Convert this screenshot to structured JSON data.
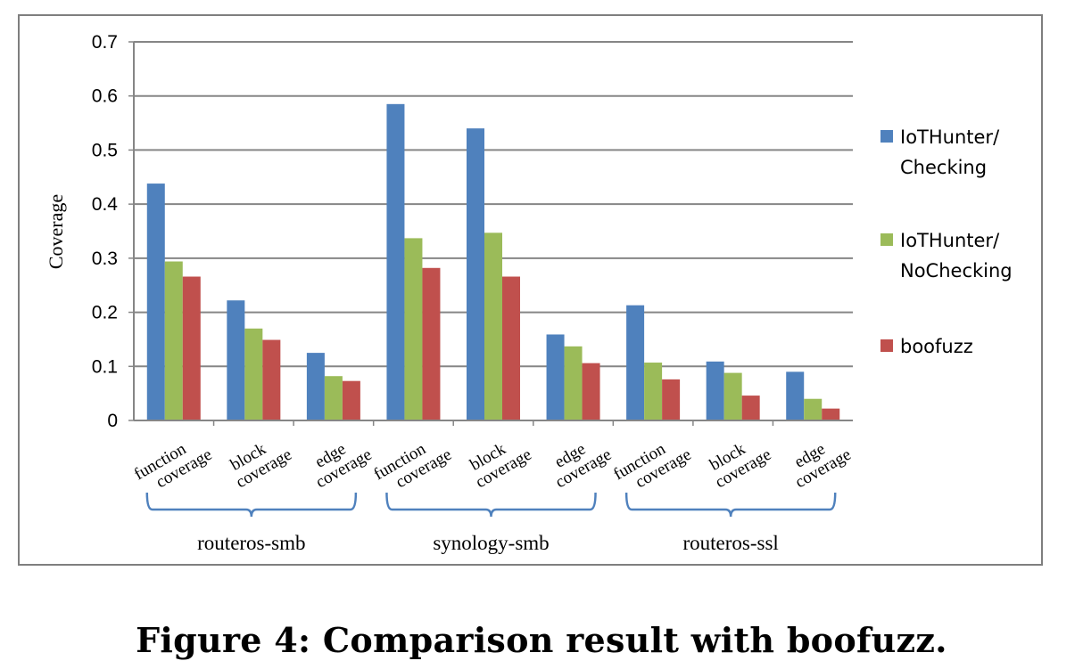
{
  "chart_data": {
    "type": "bar",
    "title": "",
    "ylabel": "Coverage",
    "xlabel": "",
    "ylim": [
      0,
      0.7
    ],
    "yticks": [
      "0",
      "0.1",
      "0.2",
      "0.3",
      "0.4",
      "0.5",
      "0.6",
      "0.7"
    ],
    "grid": true,
    "legend_position": "right",
    "categories": [
      [
        "function",
        "coverage"
      ],
      [
        "block",
        "coverage"
      ],
      [
        "edge",
        "coverage"
      ],
      [
        "function",
        "coverage"
      ],
      [
        "block",
        "coverage"
      ],
      [
        "edge",
        "coverage"
      ],
      [
        "function",
        "coverage"
      ],
      [
        "block",
        "coverage"
      ],
      [
        "edge",
        "coverage"
      ]
    ],
    "groups": [
      "routeros-smb",
      "synology-smb",
      "routeros-ssl"
    ],
    "series": [
      {
        "name": [
          "IoTHunter/",
          "Checking"
        ],
        "color": "#4f81bd",
        "values": [
          0.438,
          0.222,
          0.125,
          0.585,
          0.54,
          0.159,
          0.213,
          0.109,
          0.09
        ]
      },
      {
        "name": [
          "IoTHunter/",
          "NoChecking"
        ],
        "color": "#9bbb59",
        "values": [
          0.294,
          0.17,
          0.082,
          0.337,
          0.347,
          0.137,
          0.107,
          0.088,
          0.04
        ]
      },
      {
        "name": [
          "boofuzz"
        ],
        "color": "#c0504d",
        "values": [
          0.266,
          0.149,
          0.073,
          0.282,
          0.266,
          0.106,
          0.076,
          0.046,
          0.022
        ]
      }
    ]
  },
  "caption": "Figure 4: Comparison result with boofuzz."
}
